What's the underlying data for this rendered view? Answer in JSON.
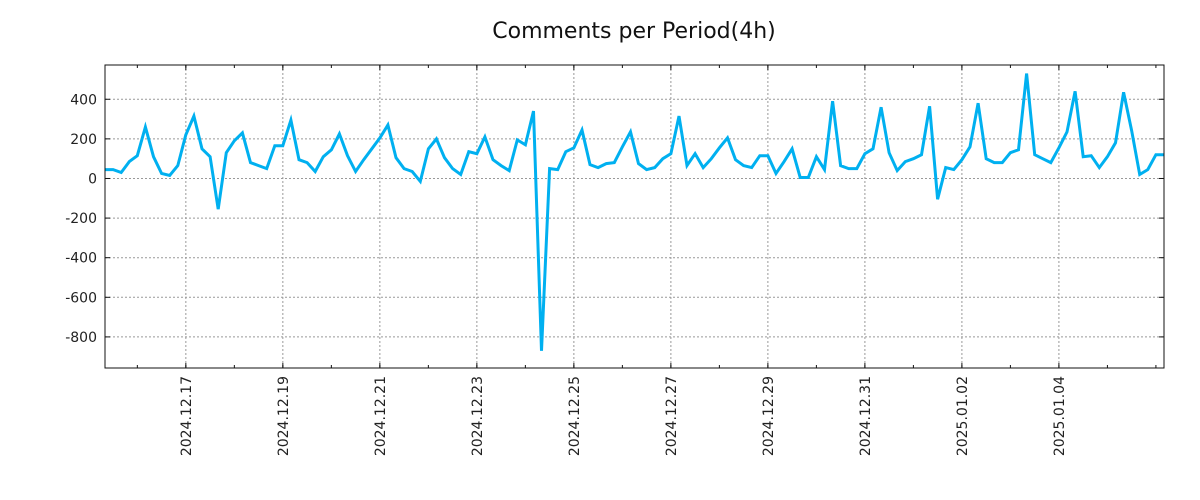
{
  "chart_data": {
    "type": "line",
    "title": "Comments per Period(4h)",
    "xlabel": "",
    "ylabel": "",
    "start": "2024-12-15T08:00:00",
    "period_hours": 4,
    "ylim": [
      -957,
      573
    ],
    "grid": true,
    "line_color": "#00b0f0",
    "y_ticks": [
      400,
      200,
      0,
      -200,
      -400,
      -600,
      -800
    ],
    "y_tick_labels": [
      "400",
      "200",
      "0",
      "-200",
      "-400",
      "-600",
      "-800"
    ],
    "x_ticks": [
      "2024-12-17",
      "2024-12-19",
      "2024-12-21",
      "2024-12-23",
      "2024-12-25",
      "2024-12-27",
      "2024-12-29",
      "2024-12-31",
      "2025-01-02",
      "2025-01-04"
    ],
    "x_tick_labels": [
      "2024.12.17",
      "2024.12.19",
      "2024.12.21",
      "2024.12.23",
      "2024.12.25",
      "2024.12.27",
      "2024.12.29",
      "2024.12.31",
      "2025.01.02",
      "2025.01.04"
    ],
    "series": [
      {
        "name": "comments",
        "values": [
          45,
          45,
          30,
          85,
          115,
          260,
          110,
          25,
          15,
          65,
          220,
          315,
          150,
          110,
          -155,
          130,
          190,
          230,
          80,
          65,
          50,
          165,
          165,
          295,
          95,
          80,
          35,
          110,
          145,
          225,
          115,
          35,
          95,
          150,
          205,
          270,
          105,
          50,
          35,
          -15,
          150,
          200,
          105,
          50,
          20,
          135,
          125,
          210,
          95,
          65,
          40,
          195,
          170,
          340,
          -870,
          50,
          45,
          135,
          155,
          245,
          70,
          55,
          75,
          80,
          160,
          235,
          75,
          45,
          55,
          100,
          125,
          315,
          65,
          125,
          55,
          100,
          155,
          205,
          95,
          65,
          55,
          115,
          115,
          25,
          85,
          150,
          5,
          5,
          110,
          45,
          390,
          65,
          50,
          50,
          125,
          150,
          360,
          130,
          40,
          85,
          100,
          120,
          365,
          -105,
          55,
          45,
          95,
          160,
          380,
          100,
          80,
          80,
          130,
          145,
          530,
          120,
          100,
          80,
          155,
          235,
          440,
          110,
          115,
          55,
          110,
          180,
          435,
          240,
          20,
          45,
          120,
          120
        ]
      }
    ]
  }
}
